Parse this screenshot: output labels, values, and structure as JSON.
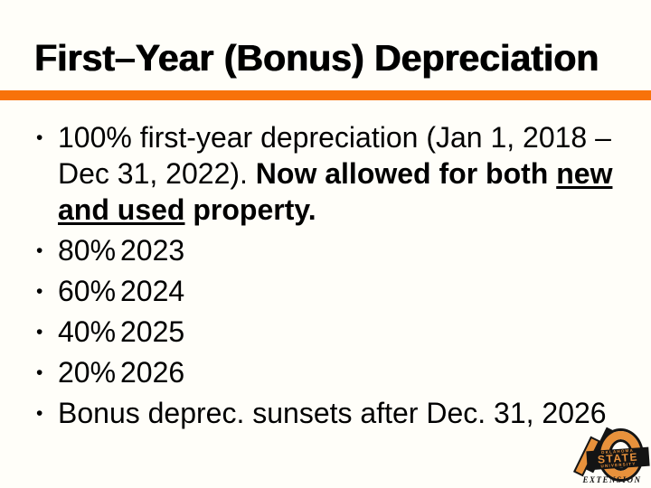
{
  "slide": {
    "title": "First–Year (Bonus) Depreciation",
    "bullet1": {
      "text_regular": "100% first-year depreciation (Jan 1, 2018 – Dec 31, 2022). ",
      "text_bold": "Now allowed for both ",
      "text_bold_underline": "new and used",
      "text_bold_after": " property."
    },
    "schedule": [
      {
        "percent": "80%",
        "year": "2023"
      },
      {
        "percent": "60%",
        "year": "2024"
      },
      {
        "percent": "40%",
        "year": "2025"
      },
      {
        "percent": "20%",
        "year": "2026"
      }
    ],
    "closing_bullet": "Bonus deprec. sunsets after Dec. 31, 2026",
    "logo": {
      "line_top": "OKLAHOMA",
      "line_main": "STATE",
      "line_bottom": "UNIVERSITY",
      "line_footer": "EXTENSION"
    },
    "colors": {
      "accent_bar": "#F8720A",
      "logo_orange": "#E8913B",
      "logo_black": "#141414"
    }
  }
}
